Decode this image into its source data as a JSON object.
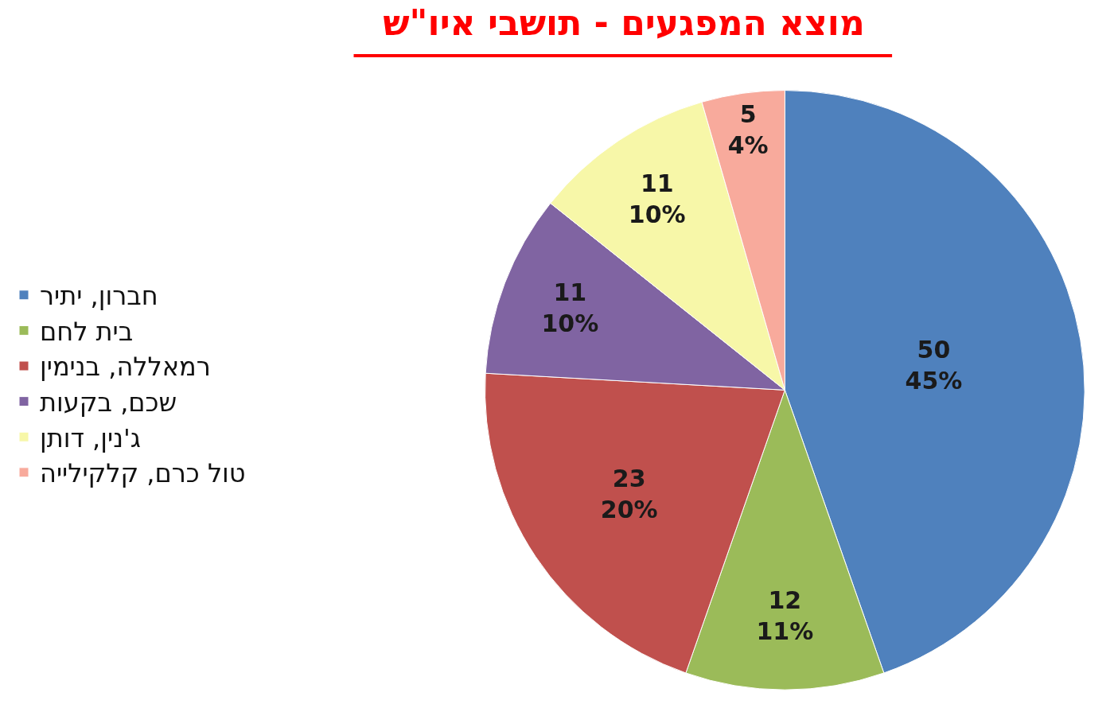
{
  "chart_data": {
    "type": "pie",
    "title": "מוצא המפגעים - תושבי איו\"ש",
    "categories": [
      "חברון, יתיר",
      "בית לחם",
      "רמאללה, בנימין",
      "שכם, בקעות",
      "ג'נין, דותן",
      "טול כרם, קלקילייה"
    ],
    "values": [
      50,
      12,
      23,
      11,
      11,
      5
    ],
    "value_labels": [
      "50\n45%",
      "12\n11%",
      "23\n20%",
      "11\n10%",
      "11\n10%",
      "5\n4%"
    ],
    "colors": [
      "#4f81bd",
      "#9bbb59",
      "#c0504d",
      "#8064a2",
      "#f7f7a8",
      "#f8aa9c"
    ],
    "legend": "left"
  }
}
